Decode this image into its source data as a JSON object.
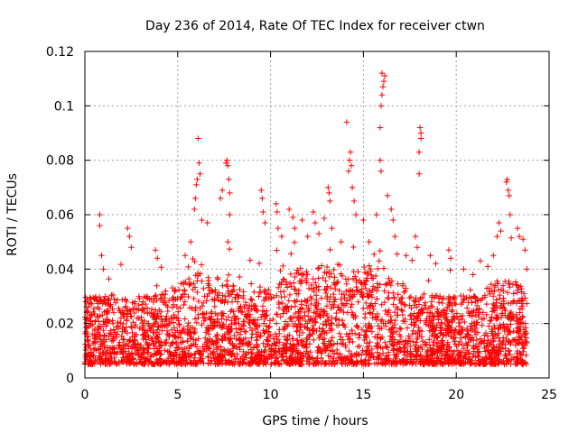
{
  "chart_data": {
    "type": "scatter",
    "title": "Day 236 of 2014, Rate Of TEC Index for receiver ctwn",
    "xlabel": "GPS time / hours",
    "ylabel": "ROTI / TECUs",
    "xlim": [
      0,
      25
    ],
    "ylim": [
      0,
      0.12
    ],
    "xticks": [
      {
        "value": 0,
        "label": "0"
      },
      {
        "value": 5,
        "label": "5"
      },
      {
        "value": 10,
        "label": "10"
      },
      {
        "value": 15,
        "label": "15"
      },
      {
        "value": 20,
        "label": "20"
      },
      {
        "value": 25,
        "label": "25"
      }
    ],
    "yticks": [
      {
        "value": 0,
        "label": "0"
      },
      {
        "value": 0.02,
        "label": "0.02"
      },
      {
        "value": 0.04,
        "label": "0.04"
      },
      {
        "value": 0.06,
        "label": "0.06"
      },
      {
        "value": 0.08,
        "label": "0.08"
      },
      {
        "value": 0.1,
        "label": "0.1"
      },
      {
        "value": 0.12,
        "label": "0.12"
      }
    ],
    "grid": true,
    "marker": "plus",
    "color": "#ff0000",
    "data_extent_hours": [
      0,
      23.8
    ],
    "typical_band": [
      0.005,
      0.03
    ],
    "series": [
      {
        "name": "ROTI",
        "points": [
          [
            0.05,
            0.028
          ],
          [
            0.1,
            0.024
          ],
          [
            0.2,
            0.019
          ],
          [
            0.8,
            0.06
          ],
          [
            0.8,
            0.056
          ],
          [
            0.9,
            0.045
          ],
          [
            1.0,
            0.04
          ],
          [
            2.3,
            0.055
          ],
          [
            2.4,
            0.052
          ],
          [
            2.5,
            0.048
          ],
          [
            3.8,
            0.047
          ],
          [
            3.9,
            0.044
          ],
          [
            5.4,
            0.045
          ],
          [
            5.7,
            0.05
          ],
          [
            5.9,
            0.062
          ],
          [
            5.95,
            0.066
          ],
          [
            6.0,
            0.071
          ],
          [
            6.05,
            0.073
          ],
          [
            6.1,
            0.088
          ],
          [
            6.15,
            0.079
          ],
          [
            6.2,
            0.075
          ],
          [
            6.3,
            0.058
          ],
          [
            6.6,
            0.057
          ],
          [
            7.3,
            0.066
          ],
          [
            7.4,
            0.069
          ],
          [
            7.6,
            0.079
          ],
          [
            7.65,
            0.08
          ],
          [
            7.7,
            0.078
          ],
          [
            7.75,
            0.073
          ],
          [
            7.8,
            0.068
          ],
          [
            7.8,
            0.06
          ],
          [
            7.7,
            0.05
          ],
          [
            9.5,
            0.069
          ],
          [
            9.55,
            0.066
          ],
          [
            9.6,
            0.061
          ],
          [
            9.7,
            0.057
          ],
          [
            10.3,
            0.064
          ],
          [
            10.35,
            0.061
          ],
          [
            10.4,
            0.055
          ],
          [
            10.6,
            0.052
          ],
          [
            11.0,
            0.062
          ],
          [
            11.2,
            0.059
          ],
          [
            11.3,
            0.055
          ],
          [
            11.7,
            0.058
          ],
          [
            12.0,
            0.052
          ],
          [
            12.3,
            0.061
          ],
          [
            12.4,
            0.057
          ],
          [
            12.6,
            0.053
          ],
          [
            13.1,
            0.07
          ],
          [
            13.15,
            0.068
          ],
          [
            13.2,
            0.065
          ],
          [
            13.3,
            0.055
          ],
          [
            13.8,
            0.05
          ],
          [
            14.2,
            0.076
          ],
          [
            14.25,
            0.08
          ],
          [
            14.3,
            0.083
          ],
          [
            14.35,
            0.078
          ],
          [
            14.4,
            0.07
          ],
          [
            14.5,
            0.065
          ],
          [
            14.1,
            0.094
          ],
          [
            14.6,
            0.06
          ],
          [
            15.0,
            0.058
          ],
          [
            15.3,
            0.05
          ],
          [
            15.7,
            0.06
          ],
          [
            15.9,
            0.092
          ],
          [
            15.95,
            0.1
          ],
          [
            16.0,
            0.104
          ],
          [
            16.05,
            0.107
          ],
          [
            16.1,
            0.109
          ],
          [
            16.15,
            0.111
          ],
          [
            16.0,
            0.112
          ],
          [
            15.9,
            0.08
          ],
          [
            15.95,
            0.076
          ],
          [
            16.3,
            0.067
          ],
          [
            16.5,
            0.062
          ],
          [
            16.6,
            0.058
          ],
          [
            16.7,
            0.052
          ],
          [
            17.3,
            0.045
          ],
          [
            17.8,
            0.052
          ],
          [
            17.9,
            0.048
          ],
          [
            18.0,
            0.075
          ],
          [
            18.0,
            0.083
          ],
          [
            18.1,
            0.09
          ],
          [
            18.05,
            0.092
          ],
          [
            18.1,
            0.088
          ],
          [
            18.6,
            0.045
          ],
          [
            18.9,
            0.042
          ],
          [
            19.6,
            0.047
          ],
          [
            19.7,
            0.044
          ],
          [
            20.4,
            0.04
          ],
          [
            20.9,
            0.038
          ],
          [
            21.3,
            0.043
          ],
          [
            21.7,
            0.041
          ],
          [
            22.0,
            0.045
          ],
          [
            22.2,
            0.052
          ],
          [
            22.3,
            0.057
          ],
          [
            22.4,
            0.054
          ],
          [
            22.7,
            0.072
          ],
          [
            22.75,
            0.073
          ],
          [
            22.8,
            0.069
          ],
          [
            22.85,
            0.067
          ],
          [
            22.9,
            0.06
          ],
          [
            23.3,
            0.055
          ],
          [
            23.4,
            0.052
          ],
          [
            23.6,
            0.051
          ],
          [
            23.7,
            0.047
          ],
          [
            23.8,
            0.04
          ]
        ]
      }
    ]
  }
}
